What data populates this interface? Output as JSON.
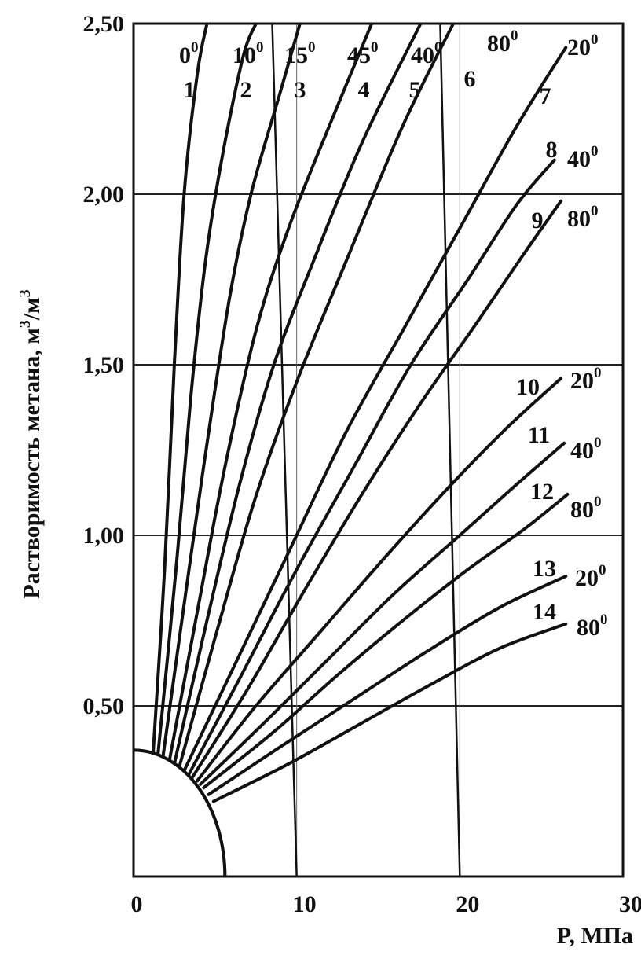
{
  "chart_data": {
    "type": "line",
    "xlabel": "P, МПа",
    "ylabel": "Растворимость метана, м³/м³",
    "ylabel_parts": {
      "main": "Растворимость метана, м",
      "sup1": "3",
      "slash": "/м",
      "sup2": "3"
    },
    "xlim": [
      0,
      30
    ],
    "ylim": [
      0.0,
      2.5
    ],
    "x_ticks": [
      0,
      10,
      20,
      30
    ],
    "x_tick_labels": [
      "0",
      "10",
      "20",
      "30"
    ],
    "y_ticks": [
      0.5,
      1.0,
      1.5,
      2.0,
      2.5
    ],
    "y_tick_labels": [
      "0,50",
      "1,00",
      "1,50",
      "2,00",
      "2,50"
    ],
    "grid": true,
    "series": [
      {
        "name": "1",
        "temp": "0",
        "x": [
          1.2,
          1.9,
          2.5,
          3.1,
          3.9,
          4.5
        ],
        "y": [
          0.36,
          0.9,
          1.5,
          2.0,
          2.35,
          2.5
        ]
      },
      {
        "name": "2",
        "temp": "10",
        "x": [
          1.5,
          2.6,
          3.5,
          4.4,
          5.4,
          6.7,
          7.5
        ],
        "y": [
          0.36,
          0.9,
          1.4,
          1.8,
          2.1,
          2.4,
          2.5
        ]
      },
      {
        "name": "3",
        "temp": "15",
        "x": [
          1.8,
          3.4,
          4.6,
          5.9,
          7.2,
          9.0,
          10.2
        ],
        "y": [
          0.35,
          0.9,
          1.3,
          1.7,
          2.0,
          2.3,
          2.5
        ]
      },
      {
        "name": "4",
        "temp": "45",
        "x": [
          2.2,
          4.0,
          5.6,
          7.5,
          9.5,
          12.0,
          14.6
        ],
        "y": [
          0.34,
          0.8,
          1.2,
          1.6,
          1.9,
          2.2,
          2.5
        ]
      },
      {
        "name": "5",
        "temp": "40",
        "x": [
          2.5,
          4.5,
          6.5,
          8.6,
          11.0,
          14.0,
          17.6
        ],
        "y": [
          0.33,
          0.75,
          1.15,
          1.5,
          1.8,
          2.15,
          2.5
        ]
      },
      {
        "name": "6",
        "temp": "80",
        "x": [
          2.8,
          5.0,
          7.4,
          10.0,
          13.0,
          16.5,
          19.6
        ],
        "y": [
          0.32,
          0.7,
          1.1,
          1.45,
          1.8,
          2.2,
          2.5
        ]
      },
      {
        "name": "7",
        "temp": "20",
        "x": [
          3.1,
          6.0,
          9.5,
          13.0,
          16.5,
          20.0,
          23.5,
          26.5
        ],
        "y": [
          0.31,
          0.6,
          0.95,
          1.3,
          1.6,
          1.9,
          2.2,
          2.43
        ]
      },
      {
        "name": "8",
        "temp": "40",
        "x": [
          3.4,
          6.5,
          10.0,
          13.5,
          17.0,
          20.5,
          23.5,
          25.8
        ],
        "y": [
          0.3,
          0.58,
          0.9,
          1.2,
          1.5,
          1.75,
          1.97,
          2.1
        ]
      },
      {
        "name": "9",
        "temp": "80",
        "x": [
          3.6,
          7.0,
          10.5,
          14.0,
          17.5,
          21.0,
          24.0,
          26.2
        ],
        "y": [
          0.29,
          0.55,
          0.84,
          1.12,
          1.38,
          1.62,
          1.83,
          1.98
        ]
      },
      {
        "name": "10",
        "temp": "20",
        "x": [
          3.9,
          7.5,
          11.5,
          15.5,
          19.5,
          23.0,
          26.2
        ],
        "y": [
          0.28,
          0.5,
          0.72,
          0.94,
          1.15,
          1.32,
          1.46
        ]
      },
      {
        "name": "11",
        "temp": "40",
        "x": [
          4.1,
          8.0,
          12.0,
          16.0,
          20.0,
          23.5,
          26.4
        ],
        "y": [
          0.27,
          0.45,
          0.64,
          0.83,
          1.0,
          1.15,
          1.27
        ]
      },
      {
        "name": "12",
        "temp": "80",
        "x": [
          4.3,
          8.5,
          12.5,
          16.5,
          20.5,
          24.0,
          26.6
        ],
        "y": [
          0.26,
          0.42,
          0.59,
          0.75,
          0.9,
          1.02,
          1.12
        ]
      },
      {
        "name": "13",
        "temp": "20",
        "x": [
          4.6,
          9.0,
          13.5,
          18.0,
          22.5,
          26.5
        ],
        "y": [
          0.24,
          0.38,
          0.52,
          0.66,
          0.79,
          0.88
        ]
      },
      {
        "name": "14",
        "temp": "80",
        "x": [
          4.9,
          9.5,
          14.0,
          18.5,
          22.5,
          26.5
        ],
        "y": [
          0.22,
          0.33,
          0.45,
          0.57,
          0.67,
          0.74
        ]
      }
    ],
    "reference_lines": [
      {
        "x": [
          8.5,
          10.0
        ],
        "y": [
          2.5,
          0.0
        ]
      },
      {
        "x": [
          18.8,
          20.0
        ],
        "y": [
          2.5,
          0.0
        ]
      }
    ],
    "origin_arc": {
      "radius_y": 0.37,
      "radius_x": 5.6
    }
  }
}
